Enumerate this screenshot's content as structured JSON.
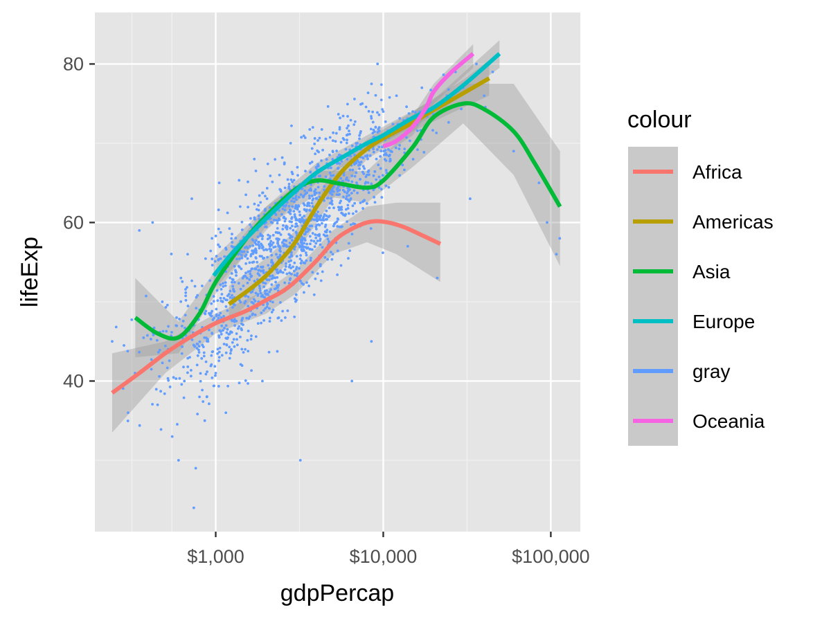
{
  "chart_data": {
    "type": "scatter",
    "xlabel": "gdpPercap",
    "ylabel": "lifeExp",
    "xscale": "log10",
    "xlim": [
      190,
      150000
    ],
    "ylim": [
      21,
      86.5
    ],
    "x_ticks": [
      {
        "value": 1000,
        "label": "$1,000"
      },
      {
        "value": 10000,
        "label": "$10,000"
      },
      {
        "value": 100000,
        "label": "$100,000"
      }
    ],
    "y_ticks": [
      {
        "value": 40,
        "label": "40"
      },
      {
        "value": 60,
        "label": "60"
      },
      {
        "value": 80,
        "label": "80"
      }
    ],
    "panel_background": "#e5e5e5",
    "grid": true,
    "legend": {
      "title": "colour",
      "position": "right",
      "entries": [
        {
          "label": "Africa",
          "color": "#f8766d"
        },
        {
          "label": "Americas",
          "color": "#b79f00"
        },
        {
          "label": "Asia",
          "color": "#00ba38"
        },
        {
          "label": "Europe",
          "color": "#00bfc4"
        },
        {
          "label": "gray",
          "color": "#619cff"
        },
        {
          "label": "Oceania",
          "color": "#f564e3"
        }
      ]
    },
    "points": {
      "series": "gray",
      "color": "#619cff",
      "note_count": 1704,
      "sample": [
        {
          "x": 241,
          "y": 45
        },
        {
          "x": 300,
          "y": 36
        },
        {
          "x": 330,
          "y": 41
        },
        {
          "x": 350,
          "y": 59
        },
        {
          "x": 400,
          "y": 42
        },
        {
          "x": 420,
          "y": 60
        },
        {
          "x": 450,
          "y": 37
        },
        {
          "x": 480,
          "y": 50
        },
        {
          "x": 520,
          "y": 44
        },
        {
          "x": 550,
          "y": 33
        },
        {
          "x": 580,
          "y": 47
        },
        {
          "x": 600,
          "y": 30
        },
        {
          "x": 620,
          "y": 53
        },
        {
          "x": 650,
          "y": 40
        },
        {
          "x": 680,
          "y": 56
        },
        {
          "x": 700,
          "y": 43
        },
        {
          "x": 720,
          "y": 63
        },
        {
          "x": 740,
          "y": 24
        },
        {
          "x": 760,
          "y": 29
        },
        {
          "x": 780,
          "y": 48
        },
        {
          "x": 800,
          "y": 38
        },
        {
          "x": 830,
          "y": 52
        },
        {
          "x": 860,
          "y": 35
        },
        {
          "x": 900,
          "y": 45
        },
        {
          "x": 950,
          "y": 58
        },
        {
          "x": 1000,
          "y": 41
        },
        {
          "x": 1050,
          "y": 65
        },
        {
          "x": 1100,
          "y": 50
        },
        {
          "x": 1150,
          "y": 36
        },
        {
          "x": 1200,
          "y": 55
        },
        {
          "x": 1300,
          "y": 47
        },
        {
          "x": 1400,
          "y": 62
        },
        {
          "x": 1500,
          "y": 44
        },
        {
          "x": 1600,
          "y": 57
        },
        {
          "x": 1700,
          "y": 68
        },
        {
          "x": 1800,
          "y": 50
        },
        {
          "x": 1900,
          "y": 40
        },
        {
          "x": 2000,
          "y": 60
        },
        {
          "x": 2200,
          "y": 53
        },
        {
          "x": 2400,
          "y": 66
        },
        {
          "x": 2600,
          "y": 48
        },
        {
          "x": 2800,
          "y": 70
        },
        {
          "x": 3000,
          "y": 58
        },
        {
          "x": 3200,
          "y": 30
        },
        {
          "x": 3400,
          "y": 64
        },
        {
          "x": 3600,
          "y": 52
        },
        {
          "x": 3800,
          "y": 72
        },
        {
          "x": 4000,
          "y": 61
        },
        {
          "x": 4500,
          "y": 67
        },
        {
          "x": 5000,
          "y": 56
        },
        {
          "x": 5500,
          "y": 72
        },
        {
          "x": 6000,
          "y": 63
        },
        {
          "x": 6500,
          "y": 40
        },
        {
          "x": 7000,
          "y": 70
        },
        {
          "x": 7500,
          "y": 75
        },
        {
          "x": 8000,
          "y": 66
        },
        {
          "x": 8500,
          "y": 45
        },
        {
          "x": 9000,
          "y": 72
        },
        {
          "x": 10000,
          "y": 74
        },
        {
          "x": 11000,
          "y": 68
        },
        {
          "x": 12000,
          "y": 76
        },
        {
          "x": 13000,
          "y": 71
        },
        {
          "x": 14000,
          "y": 57
        },
        {
          "x": 15000,
          "y": 74
        },
        {
          "x": 17000,
          "y": 77
        },
        {
          "x": 19000,
          "y": 73
        },
        {
          "x": 21000,
          "y": 53
        },
        {
          "x": 24000,
          "y": 76
        },
        {
          "x": 27000,
          "y": 79
        },
        {
          "x": 30000,
          "y": 77
        },
        {
          "x": 33000,
          "y": 63
        },
        {
          "x": 36000,
          "y": 80
        },
        {
          "x": 40000,
          "y": 76
        },
        {
          "x": 45000,
          "y": 79
        },
        {
          "x": 50000,
          "y": 73
        },
        {
          "x": 60000,
          "y": 69
        },
        {
          "x": 85000,
          "y": 65
        },
        {
          "x": 95000,
          "y": 60
        },
        {
          "x": 108000,
          "y": 56
        },
        {
          "x": 113000,
          "y": 58
        }
      ]
    },
    "series": [
      {
        "name": "Africa",
        "color": "#f8766d",
        "ribbon_lower": [
          {
            "x": 241,
            "y": 33.5
          },
          {
            "x": 500,
            "y": 41
          },
          {
            "x": 1000,
            "y": 46
          },
          {
            "x": 2000,
            "y": 48.5
          },
          {
            "x": 3000,
            "y": 51
          },
          {
            "x": 5000,
            "y": 56
          },
          {
            "x": 8000,
            "y": 57.5
          },
          {
            "x": 12000,
            "y": 56
          },
          {
            "x": 21900,
            "y": 52.5
          }
        ],
        "ribbon_upper": [
          {
            "x": 241,
            "y": 43.5
          },
          {
            "x": 500,
            "y": 45
          },
          {
            "x": 1000,
            "y": 48.5
          },
          {
            "x": 2000,
            "y": 51.5
          },
          {
            "x": 3000,
            "y": 54
          },
          {
            "x": 5000,
            "y": 59
          },
          {
            "x": 8000,
            "y": 62
          },
          {
            "x": 12000,
            "y": 62.5
          },
          {
            "x": 21900,
            "y": 62.5
          }
        ],
        "values": [
          {
            "x": 241,
            "y": 38.5
          },
          {
            "x": 350,
            "y": 41
          },
          {
            "x": 500,
            "y": 43.5
          },
          {
            "x": 700,
            "y": 45.5
          },
          {
            "x": 1000,
            "y": 47.3
          },
          {
            "x": 1500,
            "y": 48.8
          },
          {
            "x": 2000,
            "y": 50.2
          },
          {
            "x": 2500,
            "y": 51.3
          },
          {
            "x": 3000,
            "y": 52.6
          },
          {
            "x": 4000,
            "y": 55.2
          },
          {
            "x": 5000,
            "y": 57.5
          },
          {
            "x": 6000,
            "y": 58.8
          },
          {
            "x": 8000,
            "y": 60
          },
          {
            "x": 10000,
            "y": 60.1
          },
          {
            "x": 13000,
            "y": 59.5
          },
          {
            "x": 17000,
            "y": 58.4
          },
          {
            "x": 21900,
            "y": 57.3
          }
        ]
      },
      {
        "name": "Americas",
        "color": "#b79f00",
        "ribbon_lower": [
          {
            "x": 1200,
            "y": 47.5
          },
          {
            "x": 2000,
            "y": 52
          },
          {
            "x": 3000,
            "y": 56
          },
          {
            "x": 5000,
            "y": 63
          },
          {
            "x": 8000,
            "y": 68
          },
          {
            "x": 15000,
            "y": 71.5
          },
          {
            "x": 30000,
            "y": 74.5
          },
          {
            "x": 42900,
            "y": 76
          }
        ],
        "ribbon_upper": [
          {
            "x": 1200,
            "y": 52
          },
          {
            "x": 2000,
            "y": 55.5
          },
          {
            "x": 3000,
            "y": 59
          },
          {
            "x": 5000,
            "y": 66.5
          },
          {
            "x": 8000,
            "y": 70.5
          },
          {
            "x": 15000,
            "y": 74
          },
          {
            "x": 30000,
            "y": 78
          },
          {
            "x": 42900,
            "y": 80.5
          }
        ],
        "values": [
          {
            "x": 1200,
            "y": 49.7
          },
          {
            "x": 1600,
            "y": 51.6
          },
          {
            "x": 2000,
            "y": 53.3
          },
          {
            "x": 2500,
            "y": 55.5
          },
          {
            "x": 3000,
            "y": 57.6
          },
          {
            "x": 4000,
            "y": 62
          },
          {
            "x": 5000,
            "y": 65
          },
          {
            "x": 6000,
            "y": 67
          },
          {
            "x": 8000,
            "y": 69.3
          },
          {
            "x": 10000,
            "y": 70.6
          },
          {
            "x": 15000,
            "y": 72.6
          },
          {
            "x": 20000,
            "y": 74.2
          },
          {
            "x": 30000,
            "y": 76.3
          },
          {
            "x": 42900,
            "y": 78.2
          }
        ]
      },
      {
        "name": "Asia",
        "color": "#00ba38",
        "ribbon_lower": [
          {
            "x": 331,
            "y": 43
          },
          {
            "x": 600,
            "y": 43.5
          },
          {
            "x": 1000,
            "y": 51
          },
          {
            "x": 2000,
            "y": 59.5
          },
          {
            "x": 4000,
            "y": 63.5
          },
          {
            "x": 8000,
            "y": 62.5
          },
          {
            "x": 15000,
            "y": 67
          },
          {
            "x": 30000,
            "y": 72.5
          },
          {
            "x": 60000,
            "y": 66
          },
          {
            "x": 113500,
            "y": 54.5
          }
        ],
        "ribbon_upper": [
          {
            "x": 331,
            "y": 53
          },
          {
            "x": 600,
            "y": 47.5
          },
          {
            "x": 1000,
            "y": 54
          },
          {
            "x": 2000,
            "y": 62
          },
          {
            "x": 4000,
            "y": 66.5
          },
          {
            "x": 8000,
            "y": 66.5
          },
          {
            "x": 15000,
            "y": 72
          },
          {
            "x": 30000,
            "y": 77.5
          },
          {
            "x": 60000,
            "y": 77.5
          },
          {
            "x": 113500,
            "y": 69
          }
        ],
        "values": [
          {
            "x": 331,
            "y": 48
          },
          {
            "x": 450,
            "y": 46
          },
          {
            "x": 600,
            "y": 45.5
          },
          {
            "x": 800,
            "y": 48.5
          },
          {
            "x": 1000,
            "y": 52.5
          },
          {
            "x": 1500,
            "y": 57.8
          },
          {
            "x": 2000,
            "y": 60.8
          },
          {
            "x": 3000,
            "y": 64.2
          },
          {
            "x": 4000,
            "y": 65.3
          },
          {
            "x": 5500,
            "y": 64.9
          },
          {
            "x": 8000,
            "y": 64.4
          },
          {
            "x": 10000,
            "y": 65.3
          },
          {
            "x": 15000,
            "y": 69.5
          },
          {
            "x": 20000,
            "y": 73.3
          },
          {
            "x": 30000,
            "y": 75
          },
          {
            "x": 40000,
            "y": 74.3
          },
          {
            "x": 60000,
            "y": 71.5
          },
          {
            "x": 80000,
            "y": 67.5
          },
          {
            "x": 113500,
            "y": 62
          }
        ]
      },
      {
        "name": "Europe",
        "color": "#00bfc4",
        "ribbon_lower": [
          {
            "x": 973,
            "y": 51.5
          },
          {
            "x": 2000,
            "y": 59
          },
          {
            "x": 4000,
            "y": 65
          },
          {
            "x": 8000,
            "y": 69
          },
          {
            "x": 20000,
            "y": 73.5
          },
          {
            "x": 49400,
            "y": 79.5
          }
        ],
        "ribbon_upper": [
          {
            "x": 973,
            "y": 55.5
          },
          {
            "x": 2000,
            "y": 62
          },
          {
            "x": 4000,
            "y": 67.5
          },
          {
            "x": 8000,
            "y": 71
          },
          {
            "x": 20000,
            "y": 75.5
          },
          {
            "x": 49400,
            "y": 83
          }
        ],
        "values": [
          {
            "x": 973,
            "y": 53.3
          },
          {
            "x": 1300,
            "y": 56.5
          },
          {
            "x": 2000,
            "y": 60.5
          },
          {
            "x": 3000,
            "y": 64
          },
          {
            "x": 4000,
            "y": 66.3
          },
          {
            "x": 6000,
            "y": 68.5
          },
          {
            "x": 8000,
            "y": 70
          },
          {
            "x": 10000,
            "y": 71
          },
          {
            "x": 15000,
            "y": 73.2
          },
          {
            "x": 20000,
            "y": 74.5
          },
          {
            "x": 30000,
            "y": 77.3
          },
          {
            "x": 49400,
            "y": 81.3
          }
        ]
      },
      {
        "name": "Oceania",
        "color": "#f564e3",
        "ribbon_lower": [
          {
            "x": 10000,
            "y": 68.5
          },
          {
            "x": 15000,
            "y": 71
          },
          {
            "x": 20000,
            "y": 75
          },
          {
            "x": 34400,
            "y": 79.5
          }
        ],
        "ribbon_upper": [
          {
            "x": 10000,
            "y": 71
          },
          {
            "x": 15000,
            "y": 73.5
          },
          {
            "x": 20000,
            "y": 77.5
          },
          {
            "x": 34400,
            "y": 82.5
          }
        ],
        "values": [
          {
            "x": 10000,
            "y": 69.6
          },
          {
            "x": 12000,
            "y": 70.3
          },
          {
            "x": 15000,
            "y": 72.1
          },
          {
            "x": 18000,
            "y": 74.5
          },
          {
            "x": 20000,
            "y": 76.5
          },
          {
            "x": 25000,
            "y": 78.8
          },
          {
            "x": 34400,
            "y": 81.3
          }
        ]
      }
    ]
  }
}
